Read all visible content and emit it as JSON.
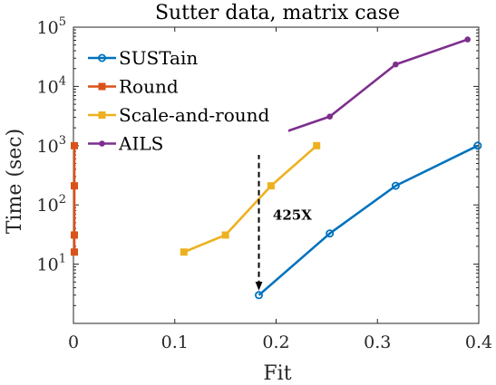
{
  "chart_data": {
    "type": "line",
    "title": "Sutter data, matrix case",
    "xlabel": "Fit",
    "ylabel": "Time (sec)",
    "xscale": "linear",
    "yscale": "log",
    "xlim": [
      0,
      0.4
    ],
    "ylim": [
      1,
      100000
    ],
    "x_ticks": [
      0,
      0.1,
      0.2,
      0.3,
      0.4
    ],
    "x_tick_labels": [
      "0",
      "0.1",
      "0.2",
      "0.3",
      "0.4"
    ],
    "y_ticks": [
      10,
      100,
      1000,
      10000,
      100000
    ],
    "y_tick_labels": [
      {
        "base": "10",
        "exp": "1"
      },
      {
        "base": "10",
        "exp": "2"
      },
      {
        "base": "10",
        "exp": "3"
      },
      {
        "base": "10",
        "exp": "4"
      },
      {
        "base": "10",
        "exp": "5"
      }
    ],
    "grid": false,
    "legend_position": "top-left",
    "series": [
      {
        "name": "SUSTain",
        "color": "#0072BD",
        "marker": "open-circle",
        "x": [
          0.183,
          0.253,
          0.318,
          0.399
        ],
        "y": [
          3,
          33,
          210,
          1000
        ]
      },
      {
        "name": "Round",
        "color": "#D95319",
        "marker": "square",
        "x": [
          0,
          0,
          0,
          0
        ],
        "y": [
          16,
          31,
          210,
          1000
        ]
      },
      {
        "name": "Scale-and-round",
        "color": "#EDB120",
        "marker": "square",
        "x": [
          0.109,
          0.15,
          0.195,
          0.24
        ],
        "y": [
          16,
          31,
          210,
          1000
        ]
      },
      {
        "name": "AILS",
        "color": "#7E2F8E",
        "marker": "dot",
        "x": [
          0.183,
          0.253,
          0.318,
          0.389
        ],
        "y": [
          1200,
          3100,
          23500,
          62000
        ]
      }
    ],
    "annotations": [
      {
        "text": "425X",
        "x": 0.195,
        "y": 60,
        "arrow": {
          "x": 0.183,
          "y_from": 3,
          "y_to": 1200,
          "style": "dashed-double"
        }
      }
    ]
  }
}
